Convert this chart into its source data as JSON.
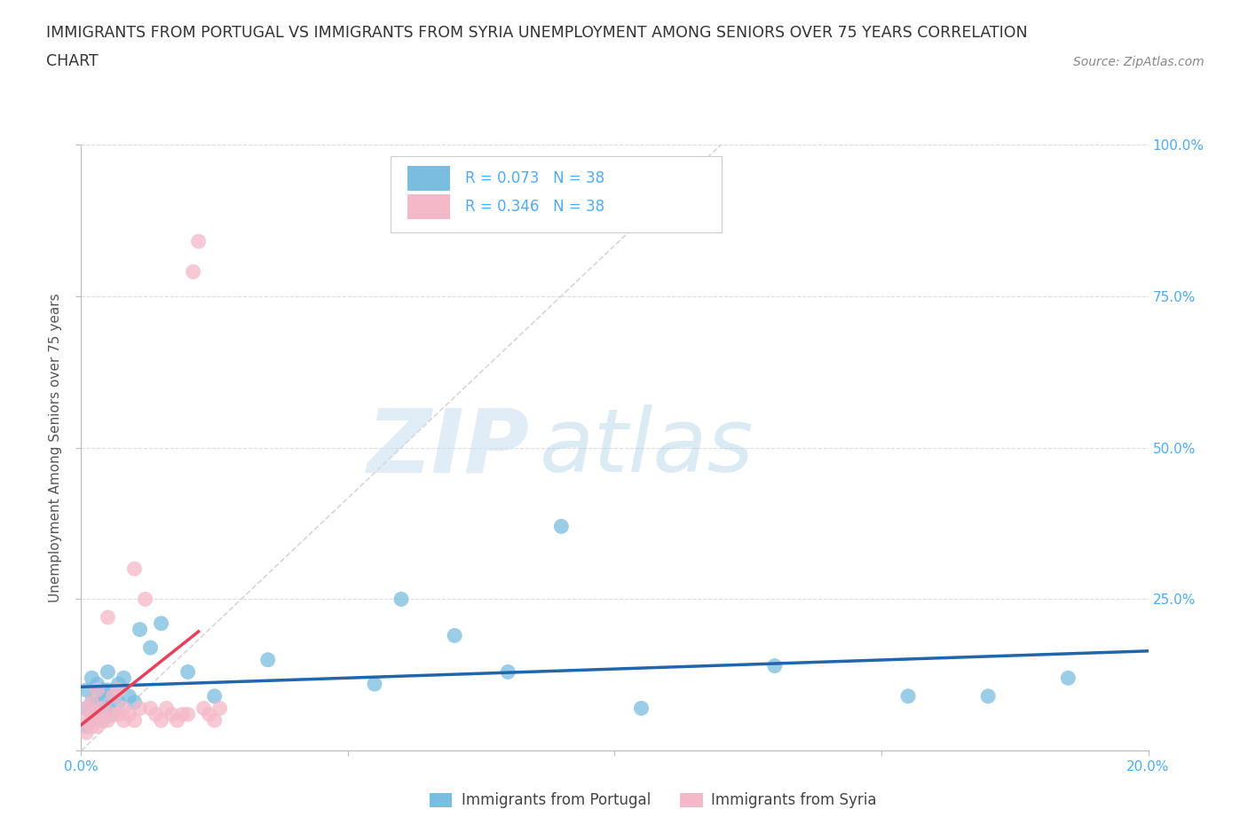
{
  "title_line1": "IMMIGRANTS FROM PORTUGAL VS IMMIGRANTS FROM SYRIA UNEMPLOYMENT AMONG SENIORS OVER 75 YEARS CORRELATION",
  "title_line2": "CHART",
  "source": "Source: ZipAtlas.com",
  "ylabel": "Unemployment Among Seniors over 75 years",
  "legend_portugal": "Immigrants from Portugal",
  "legend_syria": "Immigrants from Syria",
  "R_portugal": 0.073,
  "N_portugal": 38,
  "R_syria": 0.346,
  "N_syria": 38,
  "color_portugal": "#7bbde0",
  "color_syria": "#f5b8c8",
  "color_trendline_portugal": "#2166ac",
  "color_trendline_syria": "#e8405a",
  "color_diagonal": "#cccccc",
  "watermark_zip": "ZIP",
  "watermark_atlas": "atlas",
  "background_color": "#ffffff",
  "grid_color": "#dddddd",
  "title_fontsize": 12.5,
  "axis_label_fontsize": 11,
  "tick_fontsize": 11,
  "legend_fontsize": 12,
  "portugal_x": [
    0.001,
    0.001,
    0.001,
    0.002,
    0.002,
    0.002,
    0.003,
    0.003,
    0.003,
    0.004,
    0.004,
    0.004,
    0.005,
    0.005,
    0.005,
    0.006,
    0.006,
    0.007,
    0.007,
    0.008,
    0.009,
    0.01,
    0.011,
    0.013,
    0.015,
    0.02,
    0.025,
    0.035,
    0.055,
    0.07,
    0.09,
    0.105,
    0.13,
    0.155,
    0.17,
    0.185,
    0.06,
    0.08
  ],
  "portugal_y": [
    0.04,
    0.07,
    0.1,
    0.05,
    0.08,
    0.12,
    0.06,
    0.09,
    0.11,
    0.05,
    0.08,
    0.1,
    0.07,
    0.1,
    0.13,
    0.06,
    0.09,
    0.08,
    0.11,
    0.12,
    0.09,
    0.08,
    0.2,
    0.17,
    0.21,
    0.13,
    0.09,
    0.15,
    0.11,
    0.19,
    0.37,
    0.07,
    0.14,
    0.09,
    0.09,
    0.12,
    0.25,
    0.13
  ],
  "syria_x": [
    0.001,
    0.001,
    0.001,
    0.002,
    0.002,
    0.002,
    0.003,
    0.003,
    0.003,
    0.004,
    0.004,
    0.005,
    0.005,
    0.006,
    0.006,
    0.007,
    0.007,
    0.008,
    0.008,
    0.009,
    0.01,
    0.01,
    0.011,
    0.012,
    0.013,
    0.014,
    0.015,
    0.016,
    0.017,
    0.018,
    0.019,
    0.02,
    0.021,
    0.022,
    0.023,
    0.024,
    0.025,
    0.026
  ],
  "syria_y": [
    0.03,
    0.05,
    0.07,
    0.04,
    0.06,
    0.08,
    0.04,
    0.06,
    0.1,
    0.05,
    0.07,
    0.05,
    0.22,
    0.06,
    0.09,
    0.06,
    0.1,
    0.05,
    0.07,
    0.06,
    0.05,
    0.3,
    0.07,
    0.25,
    0.07,
    0.06,
    0.05,
    0.07,
    0.06,
    0.05,
    0.06,
    0.06,
    0.79,
    0.84,
    0.07,
    0.06,
    0.05,
    0.07
  ],
  "xlim": [
    0.0,
    0.2
  ],
  "ylim": [
    0.0,
    1.0
  ],
  "yticks": [
    0.0,
    0.25,
    0.5,
    0.75,
    1.0
  ],
  "ytick_right_labels": [
    "",
    "25.0%",
    "50.0%",
    "75.0%",
    "100.0%"
  ],
  "xticks": [
    0.0,
    0.05,
    0.1,
    0.15,
    0.2
  ],
  "xtick_labels": [
    "0.0%",
    "",
    "",
    "",
    "20.0%"
  ]
}
